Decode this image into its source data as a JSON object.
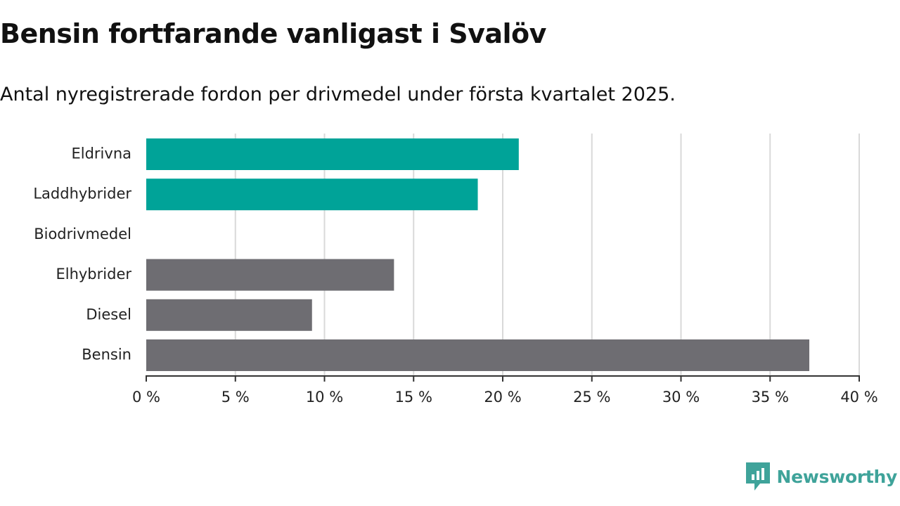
{
  "title": "Bensin fortfarande vanligast i Svalöv",
  "subtitle": "Antal nyregistrerade fordon per drivmedel under första kvartalet 2025.",
  "brand": {
    "name": "Newsworthy",
    "icon": "newsworthy-logo-icon",
    "color": "#3fa39a"
  },
  "colors": {
    "highlight": "#00a398",
    "base": "#6e6d72",
    "grid": "#d9d9d9",
    "axis": "#333333"
  },
  "chart_data": {
    "type": "bar",
    "orientation": "horizontal",
    "categories": [
      "Eldrivna",
      "Laddhybrider",
      "Biodrivmedel",
      "Elhybrider",
      "Diesel",
      "Bensin"
    ],
    "values": [
      20.9,
      18.6,
      0,
      13.9,
      9.3,
      37.2
    ],
    "bar_colors": [
      "#00a398",
      "#00a398",
      "#6e6d72",
      "#6e6d72",
      "#6e6d72",
      "#6e6d72"
    ],
    "xlim": [
      0,
      40
    ],
    "xticks": [
      0,
      5,
      10,
      15,
      20,
      25,
      30,
      35,
      40
    ],
    "xtick_labels": [
      "0 %",
      "5 %",
      "10 %",
      "15 %",
      "20 %",
      "25 %",
      "30 %",
      "35 %",
      "40 %"
    ],
    "grid": "vertical",
    "legend": "none",
    "xlabel": "",
    "ylabel": ""
  }
}
